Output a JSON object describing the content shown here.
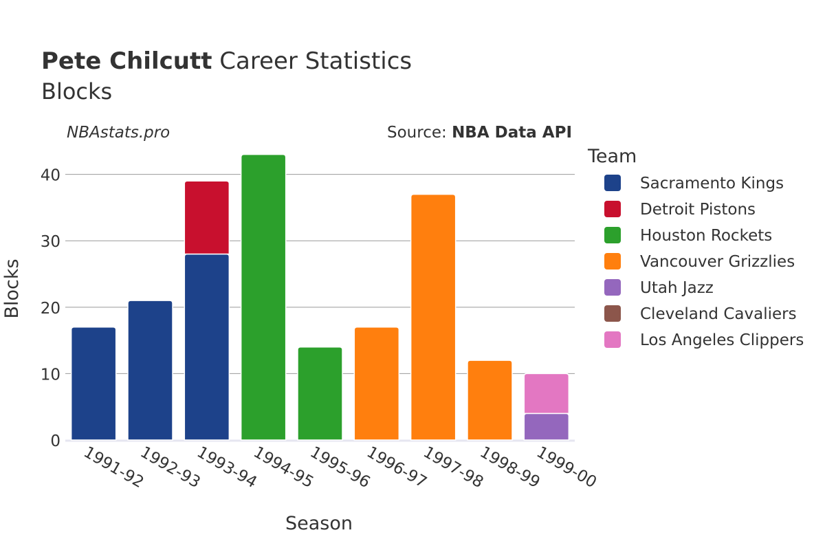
{
  "title": {
    "player": "Pete Chilcutt",
    "rest": " Career Statistics",
    "subtitle": "Blocks"
  },
  "watermark": "NBAstats.pro",
  "source": {
    "prefix": "Source: ",
    "name": "NBA Data API"
  },
  "legend": {
    "title": "Team"
  },
  "colors": {
    "Sacramento Kings": "#1d428a",
    "Detroit Pistons": "#c8102e",
    "Houston Rockets": "#2ca02c",
    "Vancouver Grizzlies": "#ff7f0e",
    "Utah Jazz": "#9467bd",
    "Cleveland Cavaliers": "#8c564b",
    "Los Angeles Clippers": "#e377c2"
  },
  "chart_data": {
    "type": "bar",
    "stacked": true,
    "title": "Pete Chilcutt Career Statistics",
    "subtitle": "Blocks",
    "xlabel": "Season",
    "ylabel": "Blocks",
    "ylim": [
      0,
      44
    ],
    "yticks": [
      0,
      10,
      20,
      30,
      40
    ],
    "grid": true,
    "legend_position": "right",
    "categories": [
      "1991-92",
      "1992-93",
      "1993-94",
      "1994-95",
      "1995-96",
      "1996-97",
      "1997-98",
      "1998-99",
      "1999-00"
    ],
    "series": [
      {
        "name": "Sacramento Kings",
        "values": [
          17,
          21,
          28,
          0,
          0,
          0,
          0,
          0,
          0
        ]
      },
      {
        "name": "Detroit Pistons",
        "values": [
          0,
          0,
          11,
          0,
          0,
          0,
          0,
          0,
          0
        ]
      },
      {
        "name": "Houston Rockets",
        "values": [
          0,
          0,
          0,
          43,
          14,
          0,
          0,
          0,
          0
        ]
      },
      {
        "name": "Vancouver Grizzlies",
        "values": [
          0,
          0,
          0,
          0,
          0,
          17,
          37,
          12,
          0
        ]
      },
      {
        "name": "Utah Jazz",
        "values": [
          0,
          0,
          0,
          0,
          0,
          0,
          0,
          0,
          4
        ]
      },
      {
        "name": "Cleveland Cavaliers",
        "values": [
          0,
          0,
          0,
          0,
          0,
          0,
          0,
          0,
          0
        ]
      },
      {
        "name": "Los Angeles Clippers",
        "values": [
          0,
          0,
          0,
          0,
          0,
          0,
          0,
          0,
          6
        ]
      }
    ]
  }
}
